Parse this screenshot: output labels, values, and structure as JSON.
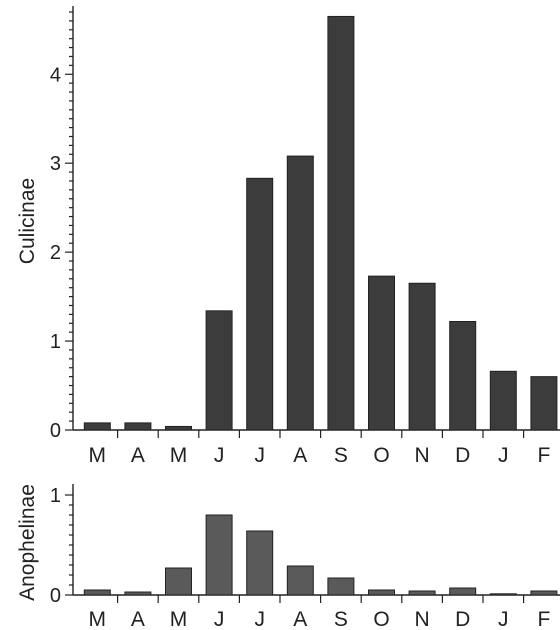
{
  "chart_data": [
    {
      "type": "bar",
      "name": "Culicinae",
      "title": "",
      "xlabel": "",
      "ylabel": "Culicinae",
      "categories": [
        "M",
        "A",
        "M",
        "J",
        "J",
        "A",
        "S",
        "O",
        "N",
        "D",
        "J",
        "F"
      ],
      "values": [
        0.08,
        0.08,
        0.04,
        1.34,
        2.83,
        3.08,
        4.65,
        1.73,
        1.65,
        1.22,
        0.66,
        0.6
      ],
      "ylim": [
        0,
        4.7
      ],
      "yticks": [
        "0",
        "1",
        "2",
        "3",
        "4"
      ],
      "bar_color": "#3c3c3c",
      "grid": false,
      "legend": "none"
    },
    {
      "type": "bar",
      "name": "Anophelinae",
      "title": "",
      "xlabel": "",
      "ylabel": "Anophelinae",
      "categories": [
        "M",
        "A",
        "M",
        "J",
        "J",
        "A",
        "S",
        "O",
        "N",
        "D",
        "J",
        "F"
      ],
      "values": [
        0.05,
        0.03,
        0.27,
        0.8,
        0.64,
        0.29,
        0.17,
        0.05,
        0.04,
        0.07,
        0.01,
        0.04
      ],
      "ylim": [
        0,
        1.05
      ],
      "yticks": [
        "0",
        "1"
      ],
      "bar_color": "#5a5a5a",
      "grid": false,
      "legend": "none"
    }
  ]
}
